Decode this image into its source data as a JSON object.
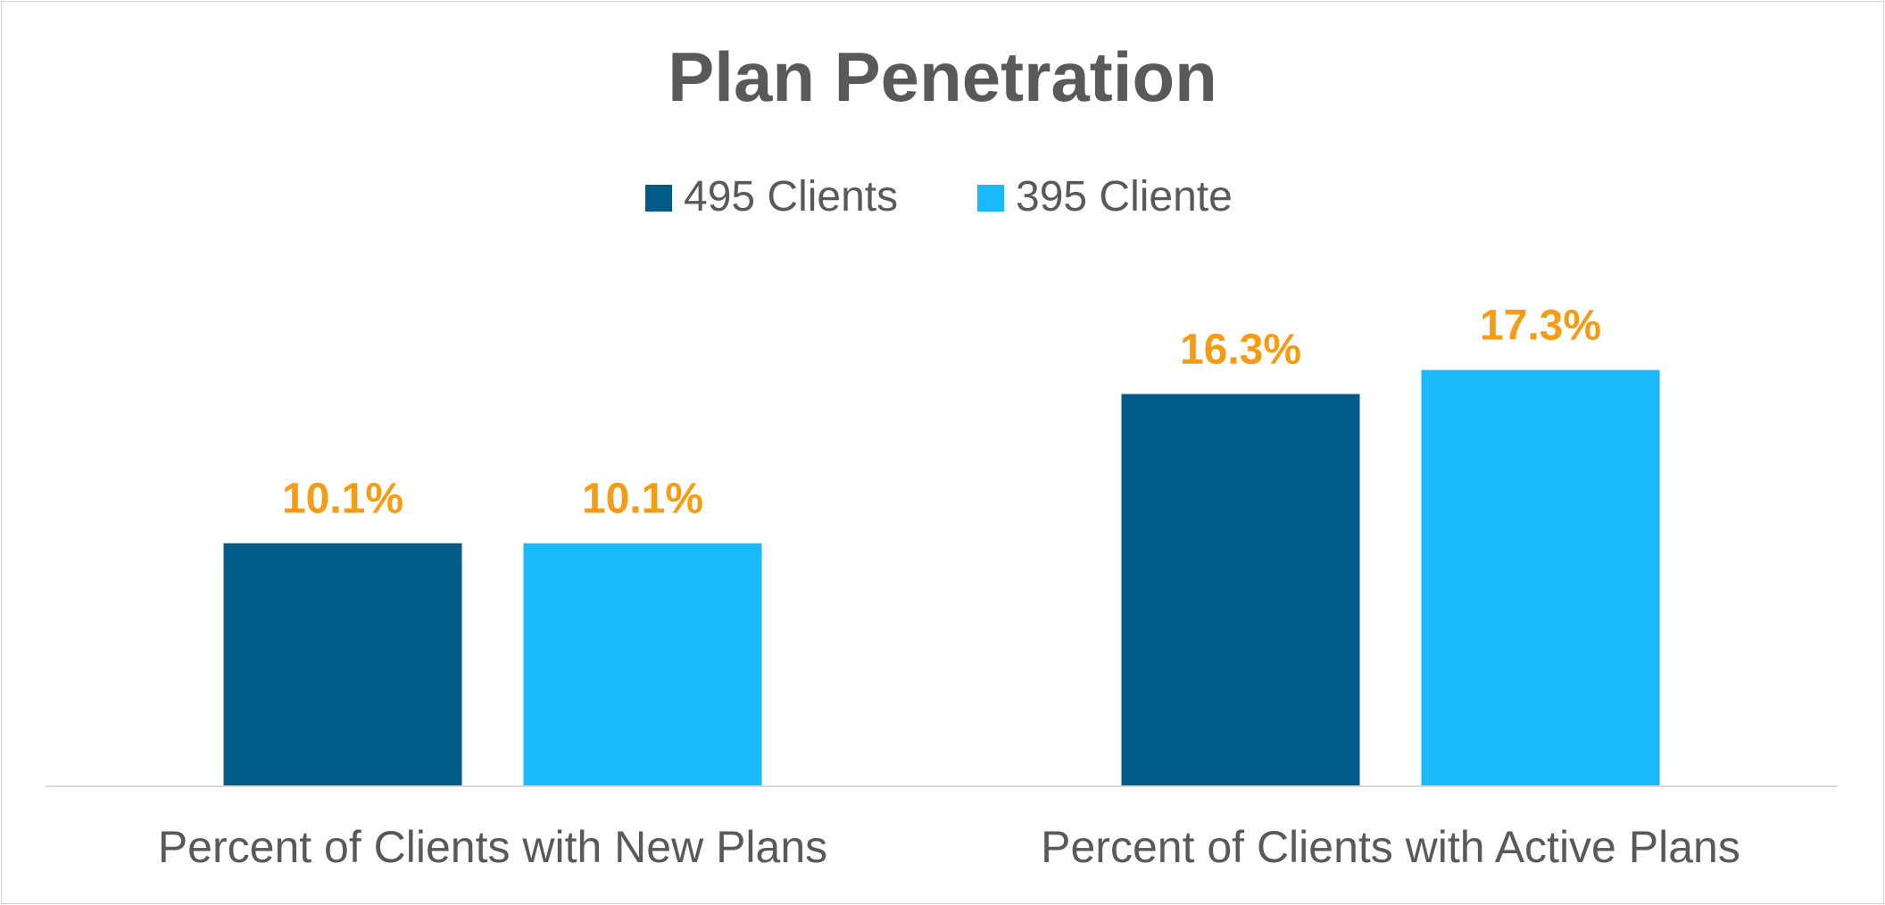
{
  "chart_data": {
    "type": "bar",
    "title": "Plan Penetration",
    "categories": [
      "Percent of Clients with New Plans",
      "Percent of Clients with Active Plans"
    ],
    "series": [
      {
        "name": "495 Clients",
        "color": "#005b86",
        "values": [
          10.1,
          16.3
        ],
        "labels": [
          "10.1%",
          "16.3%"
        ]
      },
      {
        "name": "395 Cliente",
        "color": "#19b9fb",
        "values": [
          10.1,
          17.3
        ],
        "labels": [
          "10.1%",
          "17.3%"
        ]
      }
    ],
    "ylim": [
      0,
      27
    ],
    "grid": false,
    "legend_position": "top",
    "value_label_color": "#f59c14",
    "axis_line_color": "#d9d9d9"
  }
}
